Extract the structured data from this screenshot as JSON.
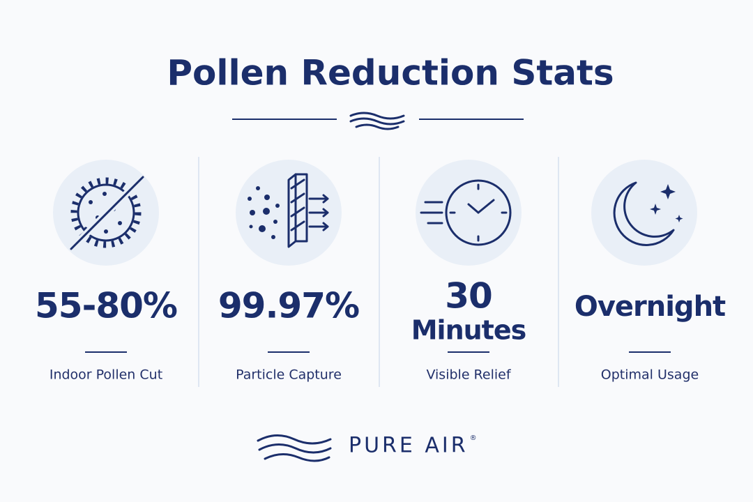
{
  "header": {
    "title": "Pollen Reduction Stats"
  },
  "stats": [
    {
      "value_lines": [
        "55-80%"
      ],
      "label": "Indoor Pollen Cut"
    },
    {
      "value_lines": [
        "99.97%"
      ],
      "label": "Particle Capture"
    },
    {
      "value_lines": [
        "30",
        "Minutes"
      ],
      "label": "Visible Relief"
    },
    {
      "value_lines": [
        "Overnight"
      ],
      "label": "Optimal Usage"
    }
  ],
  "brand": {
    "name": "PURE AIR",
    "mark": "®"
  }
}
